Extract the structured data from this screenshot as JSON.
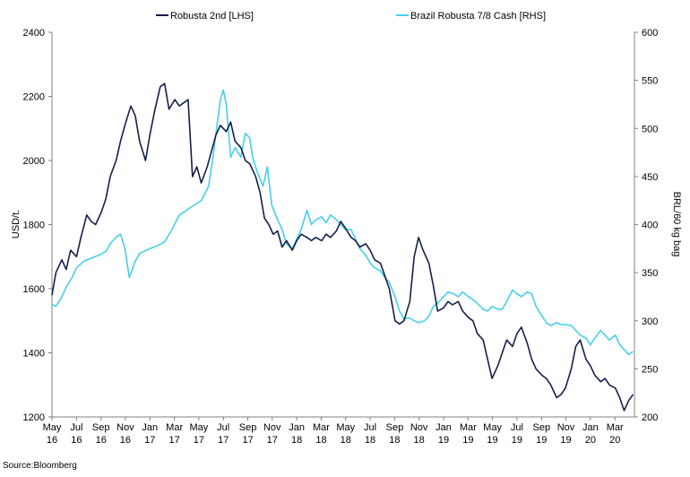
{
  "chart_data": {
    "type": "line",
    "title": "",
    "source": "Source:Bloomberg",
    "colors": {
      "series_0": "#14204a",
      "series_1": "#45d0ec",
      "axis": "#808080"
    },
    "legend_position": "top-center",
    "grid": false,
    "y_left": {
      "label": "USD/t.",
      "lim": [
        1200,
        2400
      ],
      "ticks": [
        "1200",
        "1400",
        "1600",
        "1800",
        "2000",
        "2200",
        "2400"
      ]
    },
    "y_right": {
      "label": "BRL/60 kg bag",
      "lim": [
        200,
        600
      ],
      "ticks": [
        "200",
        "250",
        "300",
        "350",
        "400",
        "450",
        "500",
        "550",
        "600"
      ]
    },
    "x": {
      "lim": [
        2016.333,
        2020.3
      ],
      "tick_positions": [
        2016.333,
        2016.5,
        2016.667,
        2016.833,
        2017.0,
        2017.167,
        2017.333,
        2017.5,
        2017.667,
        2017.833,
        2018.0,
        2018.167,
        2018.333,
        2018.5,
        2018.667,
        2018.833,
        2019.0,
        2019.167,
        2019.333,
        2019.5,
        2019.667,
        2019.833,
        2020.0,
        2020.167
      ],
      "tick_labels": [
        [
          "May",
          "16"
        ],
        [
          "Jul",
          "16"
        ],
        [
          "Sep",
          "16"
        ],
        [
          "Nov",
          "16"
        ],
        [
          "Jan",
          "17"
        ],
        [
          "Mar",
          "17"
        ],
        [
          "May",
          "17"
        ],
        [
          "Jul",
          "17"
        ],
        [
          "Sep",
          "17"
        ],
        [
          "Nov",
          "17"
        ],
        [
          "Jan",
          "18"
        ],
        [
          "Mar",
          "18"
        ],
        [
          "May",
          "18"
        ],
        [
          "Jul",
          "18"
        ],
        [
          "Sep",
          "18"
        ],
        [
          "Nov",
          "18"
        ],
        [
          "Jan",
          "19"
        ],
        [
          "Mar",
          "19"
        ],
        [
          "May",
          "19"
        ],
        [
          "Jul",
          "19"
        ],
        [
          "Sep",
          "19"
        ],
        [
          "Nov",
          "19"
        ],
        [
          "Jan",
          "20"
        ],
        [
          "Mar",
          "20"
        ]
      ]
    },
    "series": [
      {
        "name": "Robusta 2nd [LHS]",
        "axis": "left",
        "points": [
          [
            2016.333,
            1580
          ],
          [
            2016.36,
            1650
          ],
          [
            2016.4,
            1690
          ],
          [
            2016.43,
            1660
          ],
          [
            2016.46,
            1720
          ],
          [
            2016.5,
            1700
          ],
          [
            2016.53,
            1760
          ],
          [
            2016.57,
            1830
          ],
          [
            2016.6,
            1810
          ],
          [
            2016.63,
            1800
          ],
          [
            2016.67,
            1840
          ],
          [
            2016.7,
            1880
          ],
          [
            2016.73,
            1950
          ],
          [
            2016.77,
            2000
          ],
          [
            2016.8,
            2060
          ],
          [
            2016.83,
            2110
          ],
          [
            2016.87,
            2170
          ],
          [
            2016.9,
            2140
          ],
          [
            2016.93,
            2060
          ],
          [
            2016.97,
            2000
          ],
          [
            2017.0,
            2080
          ],
          [
            2017.03,
            2150
          ],
          [
            2017.07,
            2230
          ],
          [
            2017.1,
            2240
          ],
          [
            2017.13,
            2160
          ],
          [
            2017.17,
            2190
          ],
          [
            2017.2,
            2170
          ],
          [
            2017.23,
            2180
          ],
          [
            2017.26,
            2190
          ],
          [
            2017.29,
            1950
          ],
          [
            2017.32,
            1980
          ],
          [
            2017.35,
            1930
          ],
          [
            2017.39,
            1980
          ],
          [
            2017.42,
            2030
          ],
          [
            2017.45,
            2080
          ],
          [
            2017.48,
            2110
          ],
          [
            2017.52,
            2090
          ],
          [
            2017.55,
            2120
          ],
          [
            2017.58,
            2060
          ],
          [
            2017.62,
            2040
          ],
          [
            2017.65,
            2000
          ],
          [
            2017.68,
            1990
          ],
          [
            2017.72,
            1950
          ],
          [
            2017.75,
            1900
          ],
          [
            2017.78,
            1820
          ],
          [
            2017.81,
            1800
          ],
          [
            2017.84,
            1770
          ],
          [
            2017.87,
            1780
          ],
          [
            2017.9,
            1730
          ],
          [
            2017.93,
            1750
          ],
          [
            2017.97,
            1720
          ],
          [
            2018.0,
            1750
          ],
          [
            2018.03,
            1770
          ],
          [
            2018.07,
            1760
          ],
          [
            2018.1,
            1750
          ],
          [
            2018.13,
            1760
          ],
          [
            2018.17,
            1750
          ],
          [
            2018.2,
            1770
          ],
          [
            2018.23,
            1760
          ],
          [
            2018.27,
            1780
          ],
          [
            2018.3,
            1810
          ],
          [
            2018.33,
            1790
          ],
          [
            2018.37,
            1760
          ],
          [
            2018.4,
            1750
          ],
          [
            2018.43,
            1730
          ],
          [
            2018.47,
            1740
          ],
          [
            2018.5,
            1720
          ],
          [
            2018.53,
            1690
          ],
          [
            2018.57,
            1680
          ],
          [
            2018.6,
            1640
          ],
          [
            2018.63,
            1600
          ],
          [
            2018.67,
            1500
          ],
          [
            2018.7,
            1490
          ],
          [
            2018.73,
            1500
          ],
          [
            2018.77,
            1560
          ],
          [
            2018.8,
            1700
          ],
          [
            2018.83,
            1760
          ],
          [
            2018.86,
            1720
          ],
          [
            2018.9,
            1680
          ],
          [
            2018.93,
            1610
          ],
          [
            2018.96,
            1530
          ],
          [
            2019.0,
            1540
          ],
          [
            2019.03,
            1560
          ],
          [
            2019.06,
            1550
          ],
          [
            2019.1,
            1560
          ],
          [
            2019.13,
            1530
          ],
          [
            2019.17,
            1510
          ],
          [
            2019.2,
            1500
          ],
          [
            2019.23,
            1460
          ],
          [
            2019.27,
            1440
          ],
          [
            2019.3,
            1380
          ],
          [
            2019.33,
            1320
          ],
          [
            2019.37,
            1360
          ],
          [
            2019.4,
            1400
          ],
          [
            2019.43,
            1440
          ],
          [
            2019.47,
            1420
          ],
          [
            2019.5,
            1460
          ],
          [
            2019.53,
            1480
          ],
          [
            2019.57,
            1430
          ],
          [
            2019.6,
            1380
          ],
          [
            2019.63,
            1350
          ],
          [
            2019.67,
            1330
          ],
          [
            2019.7,
            1320
          ],
          [
            2019.73,
            1300
          ],
          [
            2019.77,
            1260
          ],
          [
            2019.8,
            1270
          ],
          [
            2019.83,
            1290
          ],
          [
            2019.87,
            1350
          ],
          [
            2019.9,
            1420
          ],
          [
            2019.93,
            1440
          ],
          [
            2019.97,
            1380
          ],
          [
            2020.0,
            1360
          ],
          [
            2020.03,
            1330
          ],
          [
            2020.07,
            1310
          ],
          [
            2020.1,
            1320
          ],
          [
            2020.13,
            1300
          ],
          [
            2020.17,
            1290
          ],
          [
            2020.2,
            1260
          ],
          [
            2020.23,
            1220
          ],
          [
            2020.26,
            1250
          ],
          [
            2020.29,
            1270
          ]
        ]
      },
      {
        "name": "Brazil Robusta 7/8 Cash [RHS]",
        "axis": "right",
        "points": [
          [
            2016.333,
            317
          ],
          [
            2016.36,
            315
          ],
          [
            2016.4,
            325
          ],
          [
            2016.43,
            335
          ],
          [
            2016.47,
            345
          ],
          [
            2016.5,
            355
          ],
          [
            2016.55,
            362
          ],
          [
            2016.6,
            365
          ],
          [
            2016.65,
            368
          ],
          [
            2016.7,
            372
          ],
          [
            2016.73,
            380
          ],
          [
            2016.77,
            387
          ],
          [
            2016.8,
            390
          ],
          [
            2016.83,
            375
          ],
          [
            2016.86,
            345
          ],
          [
            2016.9,
            362
          ],
          [
            2016.93,
            370
          ],
          [
            2016.97,
            373
          ],
          [
            2017.0,
            375
          ],
          [
            2017.05,
            378
          ],
          [
            2017.1,
            382
          ],
          [
            2017.15,
            395
          ],
          [
            2017.2,
            410
          ],
          [
            2017.25,
            415
          ],
          [
            2017.3,
            420
          ],
          [
            2017.35,
            425
          ],
          [
            2017.4,
            440
          ],
          [
            2017.43,
            470
          ],
          [
            2017.45,
            495
          ],
          [
            2017.48,
            530
          ],
          [
            2017.5,
            540
          ],
          [
            2017.52,
            525
          ],
          [
            2017.55,
            470
          ],
          [
            2017.58,
            480
          ],
          [
            2017.62,
            470
          ],
          [
            2017.65,
            495
          ],
          [
            2017.68,
            490
          ],
          [
            2017.7,
            470
          ],
          [
            2017.73,
            455
          ],
          [
            2017.77,
            440
          ],
          [
            2017.8,
            460
          ],
          [
            2017.83,
            420
          ],
          [
            2017.87,
            405
          ],
          [
            2017.9,
            395
          ],
          [
            2017.93,
            380
          ],
          [
            2017.97,
            375
          ],
          [
            2018.0,
            385
          ],
          [
            2018.03,
            395
          ],
          [
            2018.07,
            415
          ],
          [
            2018.1,
            400
          ],
          [
            2018.13,
            405
          ],
          [
            2018.17,
            408
          ],
          [
            2018.2,
            402
          ],
          [
            2018.23,
            410
          ],
          [
            2018.27,
            405
          ],
          [
            2018.3,
            400
          ],
          [
            2018.33,
            395
          ],
          [
            2018.37,
            395
          ],
          [
            2018.4,
            385
          ],
          [
            2018.43,
            375
          ],
          [
            2018.47,
            368
          ],
          [
            2018.5,
            360
          ],
          [
            2018.53,
            355
          ],
          [
            2018.57,
            352
          ],
          [
            2018.6,
            345
          ],
          [
            2018.63,
            340
          ],
          [
            2018.67,
            325
          ],
          [
            2018.7,
            310
          ],
          [
            2018.73,
            302
          ],
          [
            2018.77,
            303
          ],
          [
            2018.8,
            300
          ],
          [
            2018.83,
            298
          ],
          [
            2018.87,
            300
          ],
          [
            2018.9,
            305
          ],
          [
            2018.93,
            315
          ],
          [
            2018.97,
            320
          ],
          [
            2019.0,
            325
          ],
          [
            2019.03,
            330
          ],
          [
            2019.07,
            328
          ],
          [
            2019.1,
            325
          ],
          [
            2019.13,
            330
          ],
          [
            2019.17,
            325
          ],
          [
            2019.2,
            322
          ],
          [
            2019.23,
            318
          ],
          [
            2019.27,
            312
          ],
          [
            2019.3,
            310
          ],
          [
            2019.33,
            315
          ],
          [
            2019.37,
            312
          ],
          [
            2019.4,
            312
          ],
          [
            2019.43,
            320
          ],
          [
            2019.47,
            332
          ],
          [
            2019.5,
            328
          ],
          [
            2019.53,
            325
          ],
          [
            2019.57,
            330
          ],
          [
            2019.6,
            328
          ],
          [
            2019.63,
            315
          ],
          [
            2019.67,
            305
          ],
          [
            2019.7,
            298
          ],
          [
            2019.73,
            295
          ],
          [
            2019.77,
            298
          ],
          [
            2019.8,
            296
          ],
          [
            2019.83,
            296
          ],
          [
            2019.87,
            295
          ],
          [
            2019.9,
            290
          ],
          [
            2019.93,
            285
          ],
          [
            2019.97,
            282
          ],
          [
            2020.0,
            275
          ],
          [
            2020.03,
            282
          ],
          [
            2020.07,
            290
          ],
          [
            2020.1,
            285
          ],
          [
            2020.13,
            280
          ],
          [
            2020.17,
            285
          ],
          [
            2020.2,
            275
          ],
          [
            2020.23,
            270
          ],
          [
            2020.26,
            265
          ],
          [
            2020.29,
            268
          ]
        ]
      }
    ]
  }
}
